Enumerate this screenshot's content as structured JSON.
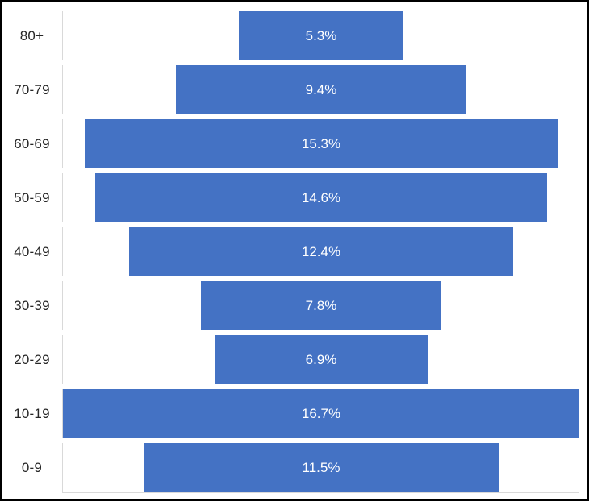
{
  "chart_data": {
    "type": "bar",
    "orientation": "horizontal-centered",
    "title": "",
    "xlabel": "",
    "ylabel": "",
    "categories": [
      "80+",
      "70-79",
      "60-69",
      "50-59",
      "40-49",
      "30-39",
      "20-29",
      "10-19",
      "0-9"
    ],
    "values": [
      5.3,
      9.4,
      15.3,
      14.6,
      12.4,
      7.8,
      6.9,
      16.7,
      11.5
    ],
    "value_labels": [
      "5.3%",
      "9.4%",
      "15.3%",
      "14.6%",
      "12.4%",
      "7.8%",
      "6.9%",
      "16.7%",
      "11.5%"
    ],
    "value_axis_max": 16.7,
    "grid": false,
    "legend": "none",
    "colors": {
      "bar": "#4472c4",
      "value_label": "#ffffff",
      "category_label": "#262626",
      "axis_line": "#d9d9d9",
      "background": "#ffffff",
      "frame_border": "#000000"
    }
  }
}
